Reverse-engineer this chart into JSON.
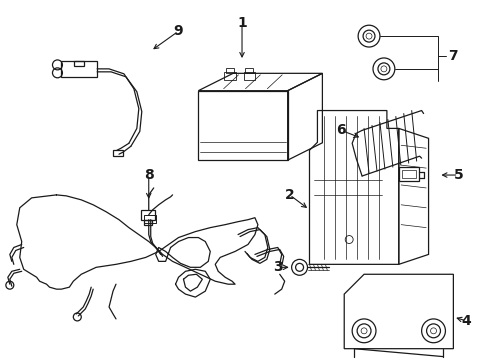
{
  "background_color": "#ffffff",
  "line_color": "#1a1a1a",
  "fig_width": 4.89,
  "fig_height": 3.6,
  "dpi": 100,
  "font_size": 10,
  "lw": 0.9
}
